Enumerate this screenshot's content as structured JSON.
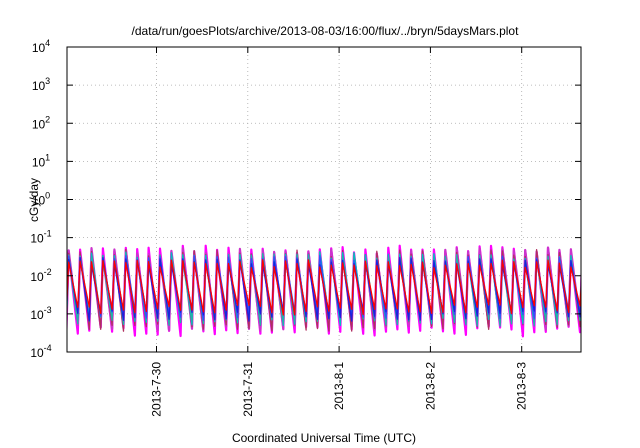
{
  "chart_data": {
    "type": "line",
    "title": "/data/run/goesPlots/archive/2013-08-03/16:00/flux/../bryn/5daysMars.plot",
    "xlabel": "Coordinated Universal Time (UTC)",
    "ylabel": "cGy/day",
    "x_ticks": [
      "2013-7-30",
      "2013-7-31",
      "2013-8-1",
      "2013-8-2",
      "2013-8-3"
    ],
    "y_scale": "log",
    "ylim": [
      0.0001,
      10000
    ],
    "y_ticks": [
      {
        "base": "10",
        "exp": "-4"
      },
      {
        "base": "10",
        "exp": "-3"
      },
      {
        "base": "10",
        "exp": "-2"
      },
      {
        "base": "10",
        "exp": "-1"
      },
      {
        "base": "10",
        "exp": "0"
      },
      {
        "base": "10",
        "exp": "1"
      },
      {
        "base": "10",
        "exp": "2"
      },
      {
        "base": "10",
        "exp": "3"
      },
      {
        "base": "10",
        "exp": "4"
      }
    ],
    "grid": true,
    "series_colors": [
      "#ff00ff",
      "#cc33cc",
      "#b03060",
      "#00c0c0",
      "#20b2aa",
      "#2f4fff",
      "#1e1ee0",
      "#ff0000"
    ],
    "envelope": {
      "peak_high": 0.05,
      "peak_low": 0.012,
      "trough_high": 0.0012,
      "trough_low": 0.0004,
      "cycles_per_day": 8
    }
  }
}
